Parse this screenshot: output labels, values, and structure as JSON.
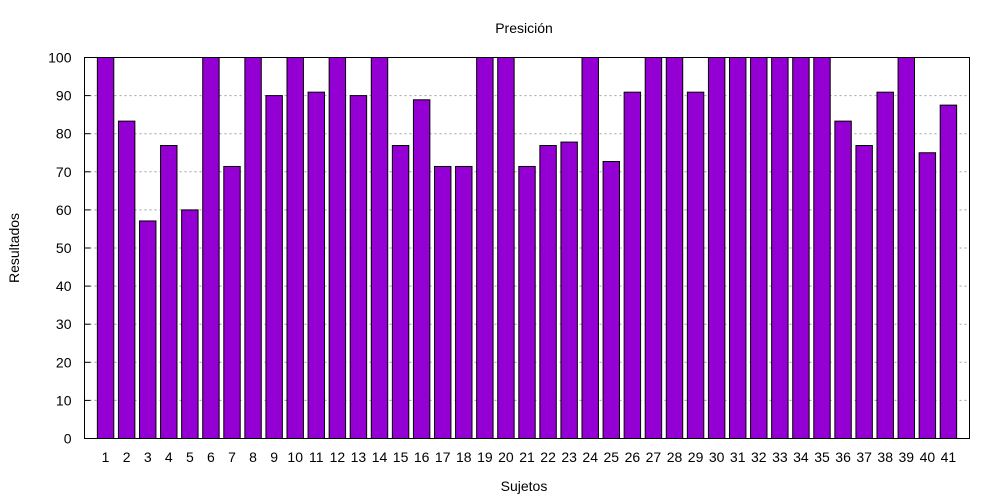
{
  "chart_data": {
    "type": "bar",
    "title": "Presición",
    "xlabel": "Sujetos",
    "ylabel": "Resultados",
    "ylim": [
      0,
      100
    ],
    "yticks": [
      0,
      10,
      20,
      30,
      40,
      50,
      60,
      70,
      80,
      90,
      100
    ],
    "grid": "horizontal-dotted",
    "bar_color": "#9400d3",
    "categories": [
      "1",
      "2",
      "3",
      "4",
      "5",
      "6",
      "7",
      "8",
      "9",
      "10",
      "11",
      "12",
      "13",
      "14",
      "15",
      "16",
      "17",
      "18",
      "19",
      "20",
      "21",
      "22",
      "23",
      "24",
      "25",
      "26",
      "27",
      "28",
      "29",
      "30",
      "31",
      "32",
      "33",
      "34",
      "35",
      "36",
      "37",
      "38",
      "39",
      "40",
      "41"
    ],
    "values": [
      100,
      83.3,
      57.1,
      76.9,
      60,
      100,
      71.4,
      100,
      90,
      100,
      90.9,
      100,
      90,
      100,
      76.9,
      88.9,
      71.4,
      71.4,
      100,
      100,
      71.4,
      76.9,
      77.8,
      100,
      72.7,
      90.9,
      100,
      100,
      90.9,
      100,
      100,
      100,
      100,
      100,
      100,
      83.3,
      76.9,
      90.9,
      100,
      75,
      87.5
    ]
  }
}
